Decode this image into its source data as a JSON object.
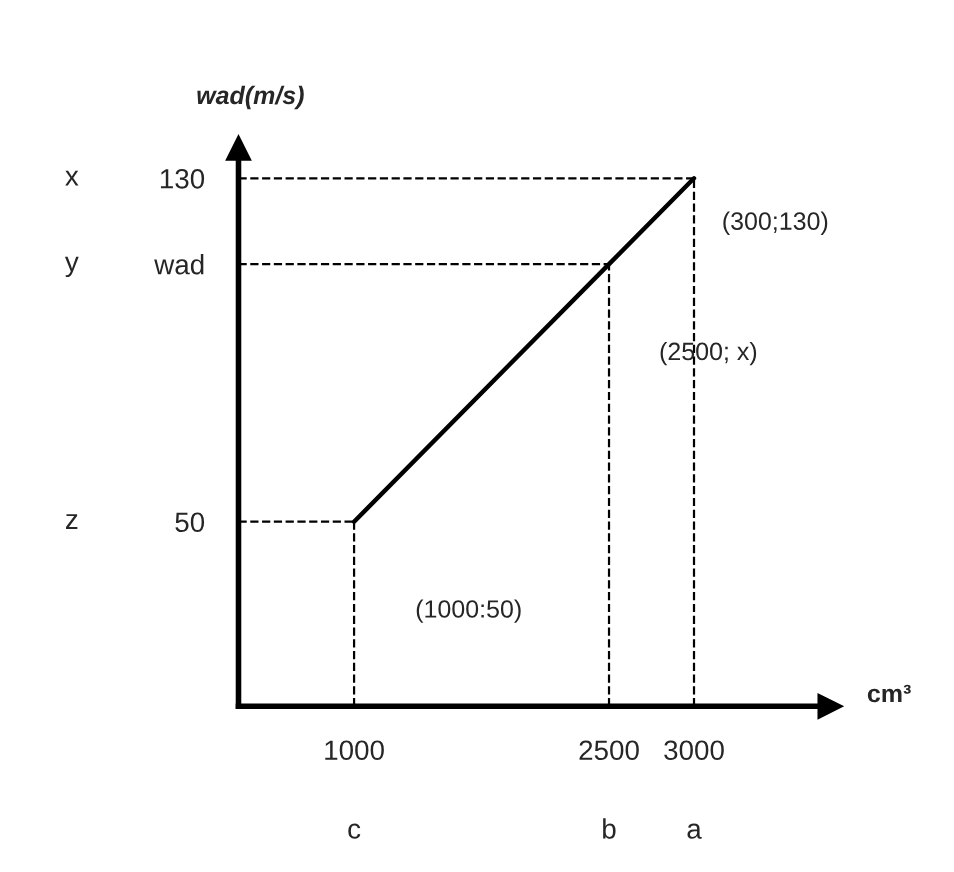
{
  "chart_data": {
    "type": "line",
    "xlabel": "cm³",
    "ylabel": "wad(m/s)",
    "x": [
      1000,
      2500,
      3000
    ],
    "series": [
      {
        "color": "#000000",
        "values": [
          50,
          110,
          130
        ]
      }
    ],
    "xlim": [
      320,
      3800
    ],
    "ylim": [
      7,
      137
    ],
    "xticks": [
      1000,
      2500,
      3000
    ],
    "yticks": [
      50,
      {
        "value": 110,
        "label": "wad"
      },
      130
    ],
    "ref_lines": [
      {
        "axis": "y",
        "value": 130,
        "line_style": "dashed",
        "color": "#000000"
      },
      {
        "axis": "y",
        "value": 110,
        "line_style": "dashed",
        "color": "#000000"
      },
      {
        "axis": "y",
        "value": 50,
        "line_style": "dashed",
        "color": "#000000"
      },
      {
        "axis": "x",
        "value": 3000,
        "line_style": "dashed",
        "color": "#000000"
      },
      {
        "axis": "x",
        "value": 2500,
        "line_style": "dashed",
        "color": "#000000"
      },
      {
        "axis": "x",
        "value": 1000,
        "line_style": "dashed",
        "color": "#000000"
      }
    ],
    "annotations": [
      "(300;130)",
      "(2500; x)",
      "(1000:50)",
      "z",
      "y",
      "x",
      "c",
      "b",
      "a"
    ],
    "grid": false,
    "legend": false,
    "marker": "none",
    "line_style": "solid"
  }
}
